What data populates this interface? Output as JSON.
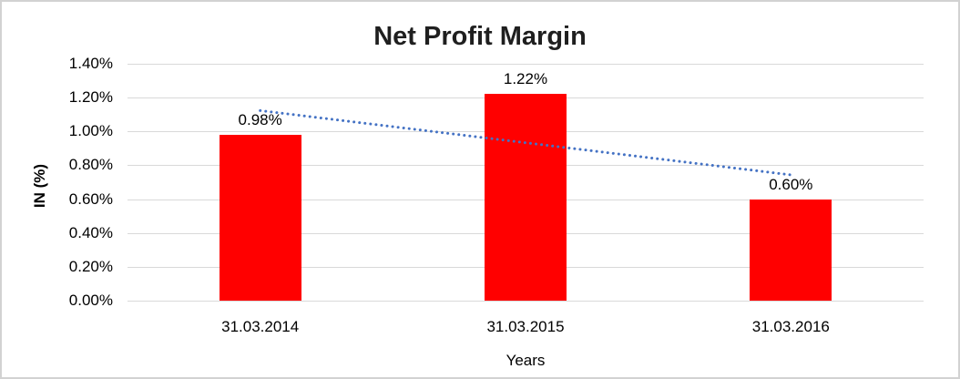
{
  "chart_data": {
    "type": "bar",
    "title": "Net Profit Margin",
    "xlabel": "Years",
    "ylabel": "IN (%)",
    "categories": [
      "31.03.2014",
      "31.03.2015",
      "31.03.2016"
    ],
    "values": [
      0.98,
      1.22,
      0.6
    ],
    "data_labels": [
      "0.98%",
      "1.22%",
      "0.60%"
    ],
    "y_ticks": [
      "1.40%",
      "1.20%",
      "1.00%",
      "0.80%",
      "0.60%",
      "0.40%",
      "0.20%",
      "0.00%"
    ],
    "ylim": [
      0,
      1.4
    ],
    "grid": true,
    "legend": "none",
    "trendline": {
      "type": "linear",
      "style": "dotted"
    },
    "colors": {
      "bar": "#ff0000",
      "trendline": "#4472c4",
      "gridline": "#d9d9d9",
      "title_text": "#1f1f1f",
      "axis_text": "#000000",
      "chart_border": "#d2d2d2",
      "background": "#ffffff"
    }
  }
}
